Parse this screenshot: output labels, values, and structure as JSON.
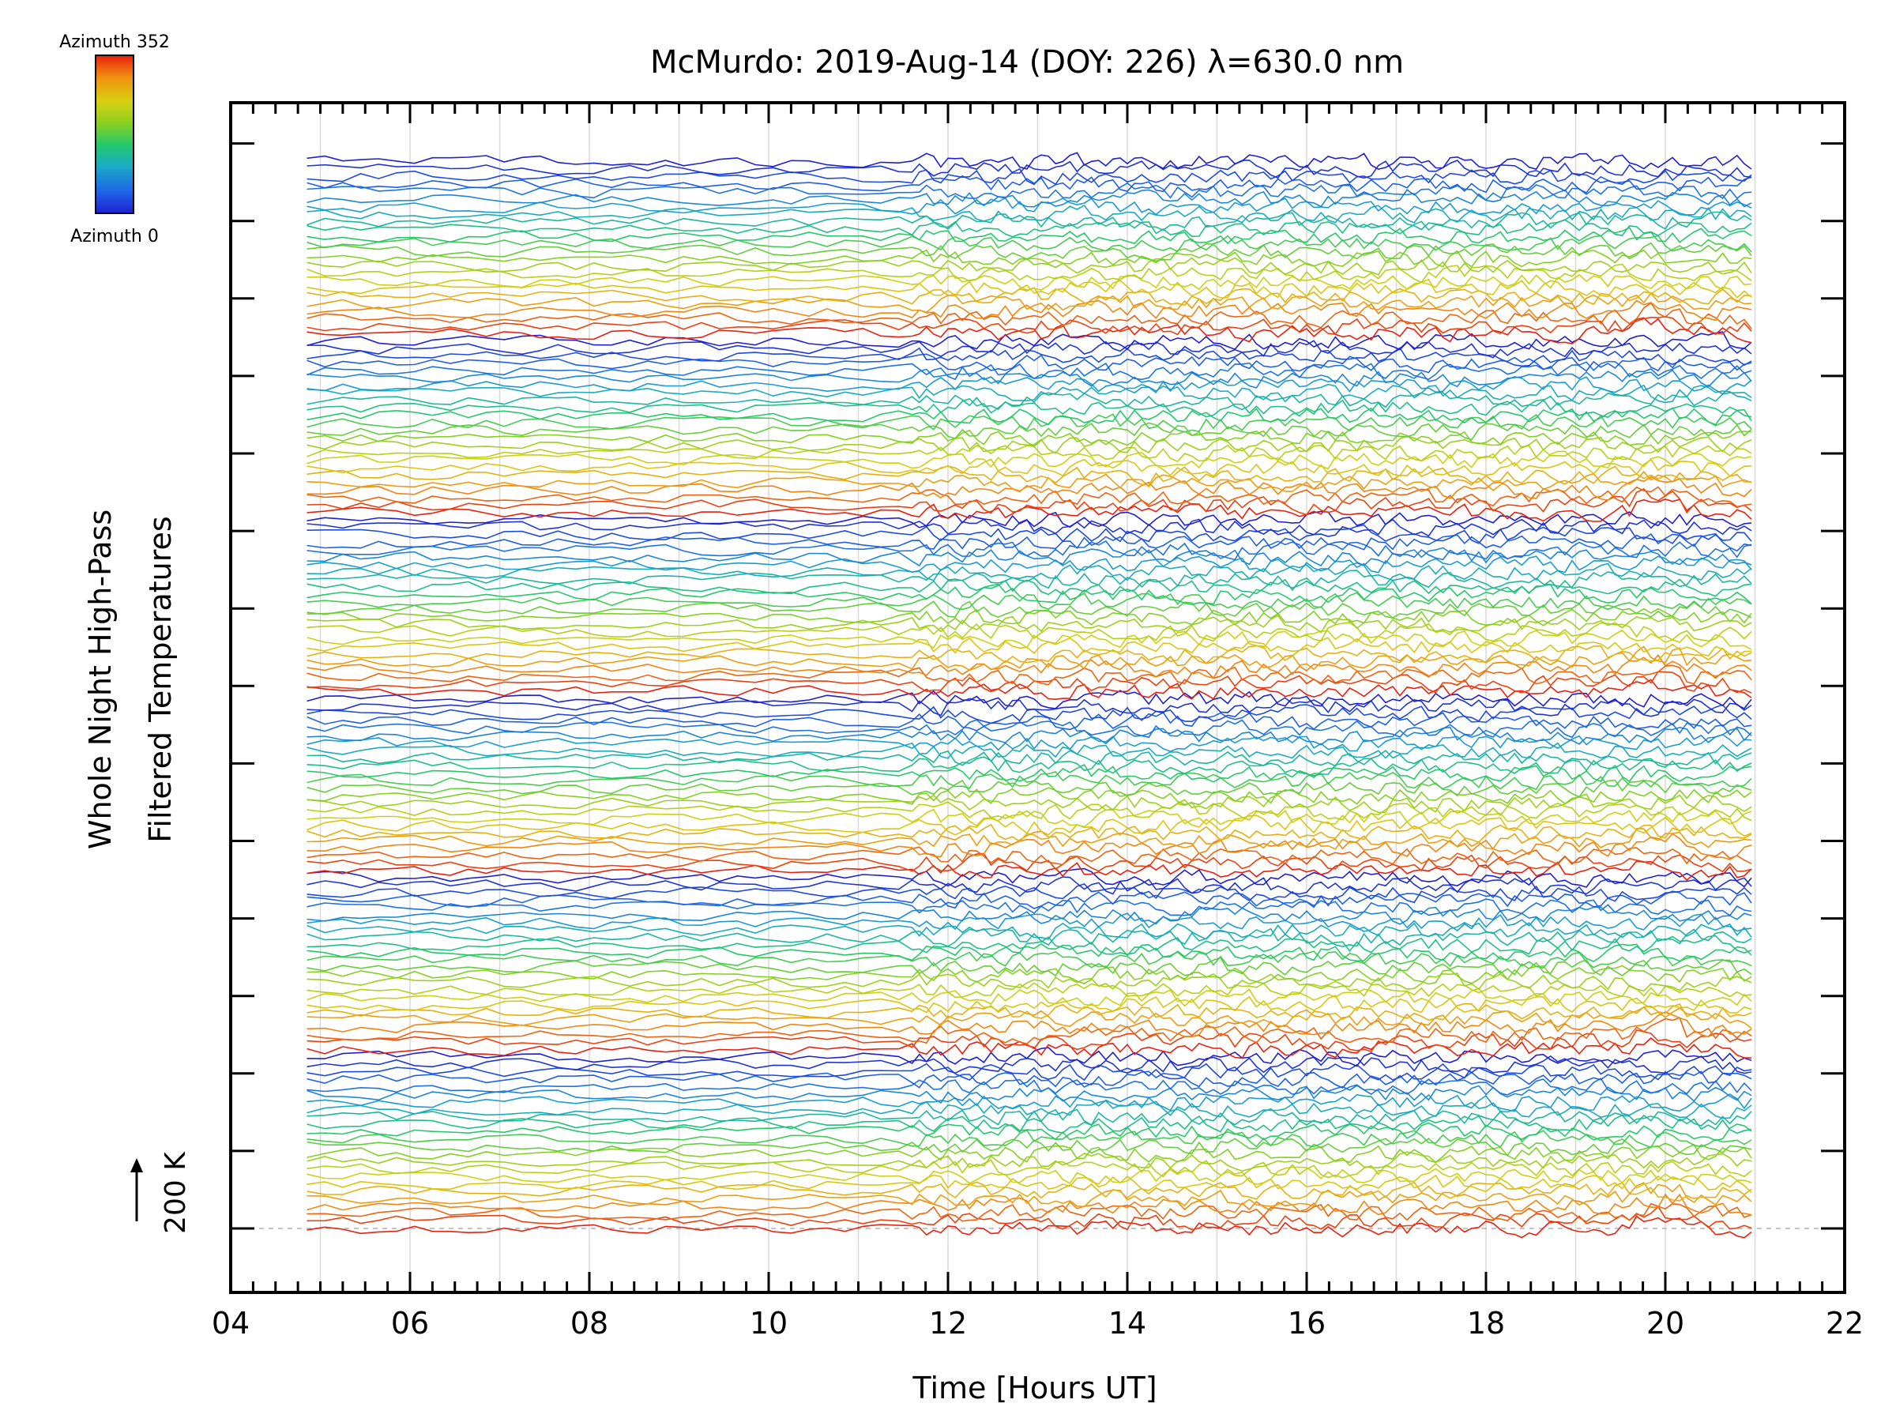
{
  "chart_data": {
    "type": "line",
    "title": "McMurdo: 2019-Aug-14 (DOY: 226) λ=630.0 nm",
    "xlabel": "Time [Hours UT]",
    "ylabel_lines": [
      "Whole Night High-Pass",
      "Filtered Temperatures"
    ],
    "xlim": [
      4,
      22
    ],
    "x_ticks": [
      "04",
      "06",
      "08",
      "10",
      "12",
      "14",
      "16",
      "18",
      "20",
      "22"
    ],
    "time_range": [
      4.85,
      21.0
    ],
    "dense_sampling_from": 11.6,
    "grid": "vertical-hourly",
    "colorbar": {
      "label_top": "Azimuth 352",
      "label_bottom": "Azimuth 0",
      "colormap": [
        "#2020d0",
        "#1f66e8",
        "#1aa8c8",
        "#22c86e",
        "#8ad020",
        "#d8d010",
        "#f09010",
        "#e82010"
      ],
      "min": 0,
      "max": 352
    },
    "scale_bar": {
      "label": "200 K"
    },
    "elevation_groups": 6,
    "azimuths_per_group": 24,
    "series_description": "Stacked high-pass filtered temperature traces, one per azimuth (0-352 deg), grouped in rows; each trace is offset vertically and colored by azimuth."
  }
}
